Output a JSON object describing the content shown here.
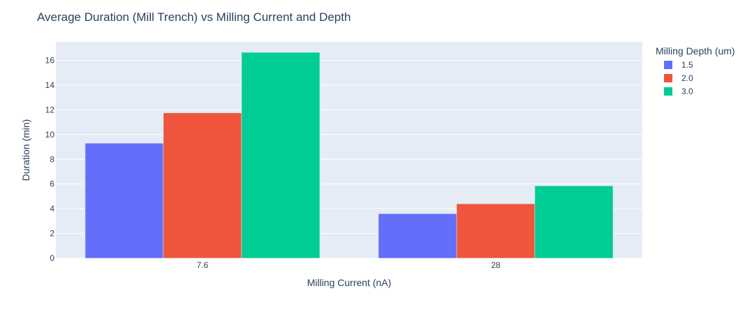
{
  "chart_data": {
    "type": "bar",
    "title": "Average Duration (Mill Trench) vs Milling Current and Depth",
    "xlabel": "Milling Current (nA)",
    "ylabel": "Duration (min)",
    "categories": [
      "7.6",
      "28"
    ],
    "ylim": [
      0,
      17.5
    ],
    "yticks": [
      0,
      2,
      4,
      6,
      8,
      10,
      12,
      14,
      16
    ],
    "grid": true,
    "legend_title": "Milling Depth (um)",
    "legend_position": "right",
    "series": [
      {
        "name": "1.5",
        "color": "#636efa",
        "values": [
          9.3,
          3.6
        ]
      },
      {
        "name": "2.0",
        "color": "#ef553b",
        "values": [
          11.75,
          4.4
        ]
      },
      {
        "name": "3.0",
        "color": "#00cc96",
        "values": [
          16.65,
          5.85
        ]
      }
    ]
  },
  "colors": {
    "plot_background": "#e5ecf6",
    "grid": "#ffffff",
    "text": "#2a3f5f"
  }
}
